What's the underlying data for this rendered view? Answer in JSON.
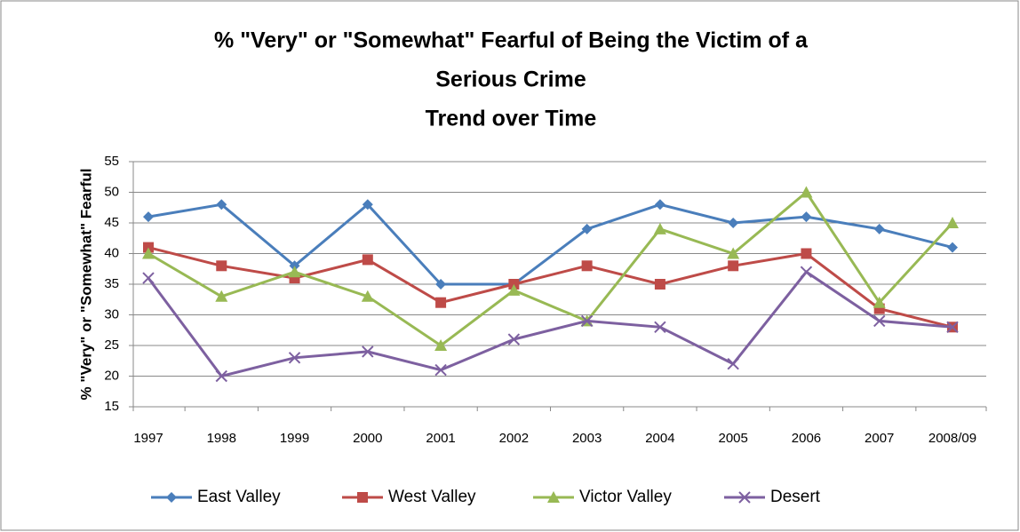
{
  "chart_data": {
    "type": "line",
    "title": [
      "% \"Very\" or \"Somewhat\" Fearful of Being the Victim of a",
      "Serious Crime"
    ],
    "subtitle": "Trend over Time",
    "y_label": "% \"Very\" or \"Somewhat\" Fearful",
    "categories": [
      "1997",
      "1998",
      "1999",
      "2000",
      "2001",
      "2002",
      "2003",
      "2004",
      "2005",
      "2006",
      "2007",
      "2008/09"
    ],
    "series": [
      {
        "name": "East Valley",
        "color": "#4a7ebb",
        "marker": "diamond",
        "values": [
          46,
          48,
          38,
          48,
          35,
          35,
          44,
          48,
          45,
          46,
          44,
          41
        ]
      },
      {
        "name": "West Valley",
        "color": "#be4b48",
        "marker": "square",
        "values": [
          41,
          38,
          36,
          39,
          32,
          35,
          38,
          35,
          38,
          40,
          31,
          28
        ]
      },
      {
        "name": "Victor Valley",
        "color": "#98b954",
        "marker": "triangle",
        "values": [
          40,
          33,
          37,
          33,
          25,
          34,
          29,
          44,
          40,
          50,
          32,
          45
        ]
      },
      {
        "name": "Desert",
        "color": "#7d60a0",
        "marker": "x",
        "values": [
          36,
          20,
          23,
          24,
          21,
          26,
          29,
          28,
          22,
          37,
          29,
          28
        ]
      }
    ],
    "ylim": [
      15,
      55
    ],
    "yticks": [
      15,
      20,
      25,
      30,
      35,
      40,
      45,
      50,
      55
    ],
    "grid": true,
    "legend": "bottom"
  }
}
